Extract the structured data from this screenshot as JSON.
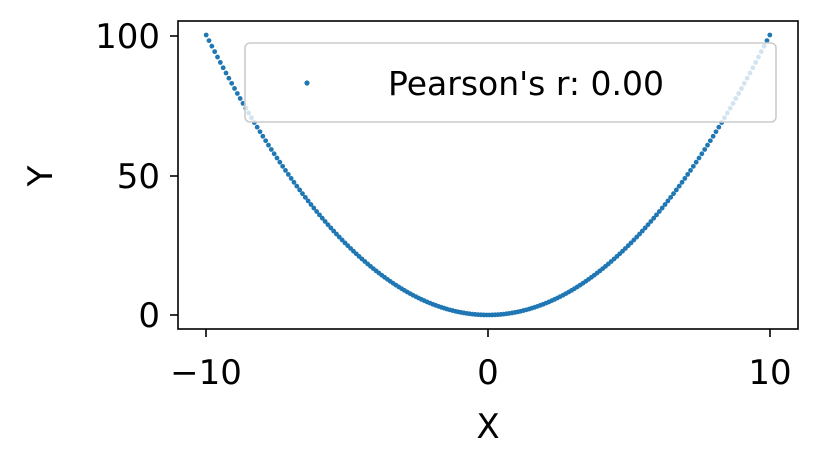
{
  "chart_data": {
    "type": "scatter",
    "title": "",
    "xlabel": "X",
    "ylabel": "Y",
    "xlim": [
      -11,
      11
    ],
    "ylim": [
      -5,
      105
    ],
    "xticks": [
      -10,
      0,
      10
    ],
    "xtick_labels": [
      "−10",
      "0",
      "10"
    ],
    "yticks": [
      0,
      50,
      100
    ],
    "ytick_labels": [
      "0",
      "50",
      "100"
    ],
    "grid": false,
    "legend": {
      "location": "upper right",
      "entries": [
        "Pearson's r: 0.00"
      ]
    },
    "series": [
      {
        "name": "Pearson's r: 0.00",
        "color": "#1f77b4",
        "function": "y = x^2",
        "x_range": [
          -10,
          10
        ],
        "n_points": 200
      }
    ]
  }
}
